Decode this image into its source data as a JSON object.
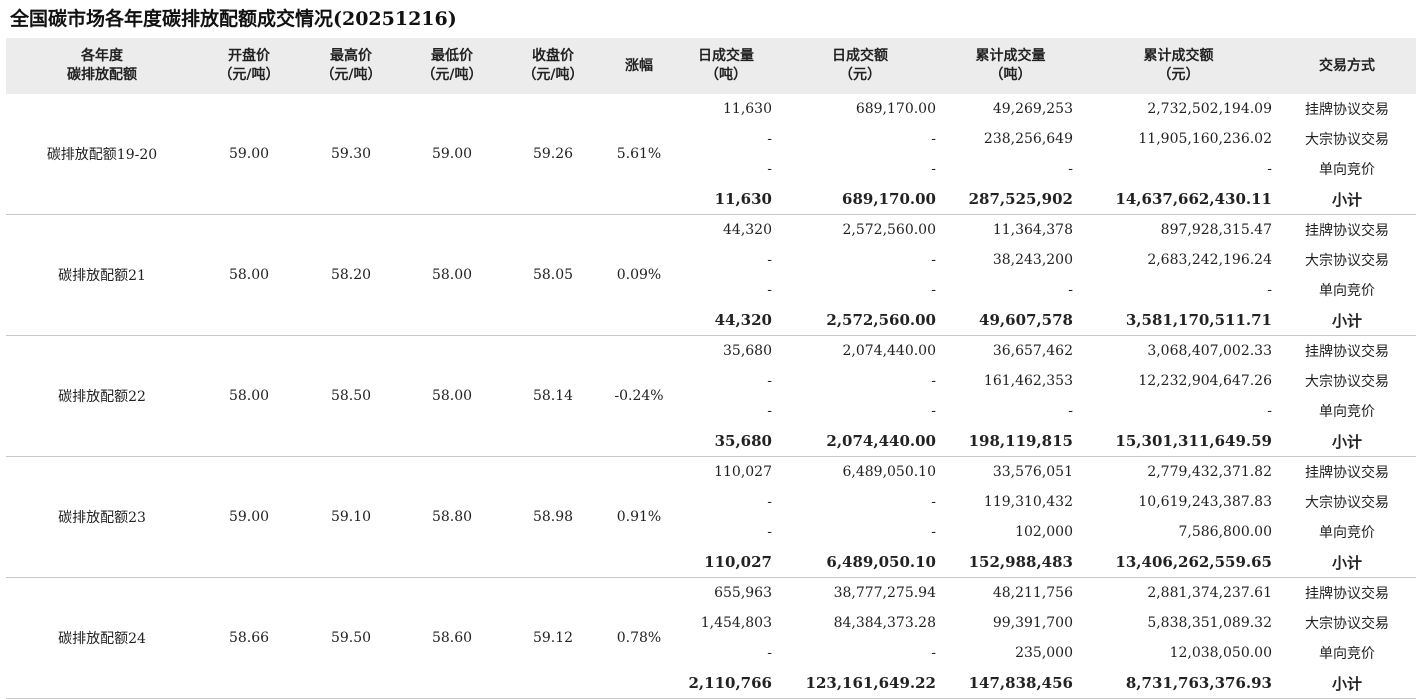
{
  "title": "全国碳市场各年度碳排放配额成交情况(20251216)",
  "headers": [
    [
      "各年度",
      "碳排放配额"
    ],
    [
      "开盘价",
      "（元/吨）"
    ],
    [
      "最高价",
      "（元/吨）"
    ],
    [
      "最低价",
      "（元/吨）"
    ],
    [
      "收盘价",
      "（元/吨）"
    ],
    [
      "涨幅"
    ],
    [
      "日成交量",
      "（吨）"
    ],
    [
      "日成交额",
      "（元）"
    ],
    [
      "累计成交量",
      "（吨）"
    ],
    [
      "累计成交额",
      "（元）"
    ],
    [
      "交易方式"
    ]
  ],
  "groups": [
    {
      "name": "碳排放配额19-20",
      "open": "59.00",
      "high": "59.30",
      "low": "59.00",
      "close": "59.26",
      "change": "5.61%",
      "rows": [
        {
          "vol": "11,630",
          "amt": "689,170.00",
          "cvol": "49,269,253",
          "camt": "2,732,502,194.09",
          "method": "挂牌协议交易"
        },
        {
          "vol": "-",
          "amt": "-",
          "cvol": "238,256,649",
          "camt": "11,905,160,236.02",
          "method": "大宗协议交易"
        },
        {
          "vol": "-",
          "amt": "-",
          "cvol": "-",
          "camt": "-",
          "method": "单向竞价"
        },
        {
          "vol": "11,630",
          "amt": "689,170.00",
          "cvol": "287,525,902",
          "camt": "14,637,662,430.11",
          "method": "小计"
        }
      ]
    },
    {
      "name": "碳排放配额21",
      "open": "58.00",
      "high": "58.20",
      "low": "58.00",
      "close": "58.05",
      "change": "0.09%",
      "rows": [
        {
          "vol": "44,320",
          "amt": "2,572,560.00",
          "cvol": "11,364,378",
          "camt": "897,928,315.47",
          "method": "挂牌协议交易"
        },
        {
          "vol": "-",
          "amt": "-",
          "cvol": "38,243,200",
          "camt": "2,683,242,196.24",
          "method": "大宗协议交易"
        },
        {
          "vol": "-",
          "amt": "-",
          "cvol": "-",
          "camt": "-",
          "method": "单向竞价"
        },
        {
          "vol": "44,320",
          "amt": "2,572,560.00",
          "cvol": "49,607,578",
          "camt": "3,581,170,511.71",
          "method": "小计"
        }
      ]
    },
    {
      "name": "碳排放配额22",
      "open": "58.00",
      "high": "58.50",
      "low": "58.00",
      "close": "58.14",
      "change": "-0.24%",
      "rows": [
        {
          "vol": "35,680",
          "amt": "2,074,440.00",
          "cvol": "36,657,462",
          "camt": "3,068,407,002.33",
          "method": "挂牌协议交易"
        },
        {
          "vol": "-",
          "amt": "-",
          "cvol": "161,462,353",
          "camt": "12,232,904,647.26",
          "method": "大宗协议交易"
        },
        {
          "vol": "-",
          "amt": "-",
          "cvol": "-",
          "camt": "-",
          "method": "单向竞价"
        },
        {
          "vol": "35,680",
          "amt": "2,074,440.00",
          "cvol": "198,119,815",
          "camt": "15,301,311,649.59",
          "method": "小计"
        }
      ]
    },
    {
      "name": "碳排放配额23",
      "open": "59.00",
      "high": "59.10",
      "low": "58.80",
      "close": "58.98",
      "change": "0.91%",
      "rows": [
        {
          "vol": "110,027",
          "amt": "6,489,050.10",
          "cvol": "33,576,051",
          "camt": "2,779,432,371.82",
          "method": "挂牌协议交易"
        },
        {
          "vol": "-",
          "amt": "-",
          "cvol": "119,310,432",
          "camt": "10,619,243,387.83",
          "method": "大宗协议交易"
        },
        {
          "vol": "-",
          "amt": "-",
          "cvol": "102,000",
          "camt": "7,586,800.00",
          "method": "单向竞价"
        },
        {
          "vol": "110,027",
          "amt": "6,489,050.10",
          "cvol": "152,988,483",
          "camt": "13,406,262,559.65",
          "method": "小计"
        }
      ]
    },
    {
      "name": "碳排放配额24",
      "open": "58.66",
      "high": "59.50",
      "low": "58.60",
      "close": "59.12",
      "change": "0.78%",
      "rows": [
        {
          "vol": "655,963",
          "amt": "38,777,275.94",
          "cvol": "48,211,756",
          "camt": "2,881,374,237.61",
          "method": "挂牌协议交易"
        },
        {
          "vol": "1,454,803",
          "amt": "84,384,373.28",
          "cvol": "99,391,700",
          "camt": "5,838,351,089.32",
          "method": "大宗协议交易"
        },
        {
          "vol": "-",
          "amt": "-",
          "cvol": "235,000",
          "camt": "12,038,050.00",
          "method": "单向竞价"
        },
        {
          "vol": "2,110,766",
          "amt": "123,161,649.22",
          "cvol": "147,838,456",
          "camt": "8,731,763,376.93",
          "method": "小计"
        }
      ]
    }
  ]
}
